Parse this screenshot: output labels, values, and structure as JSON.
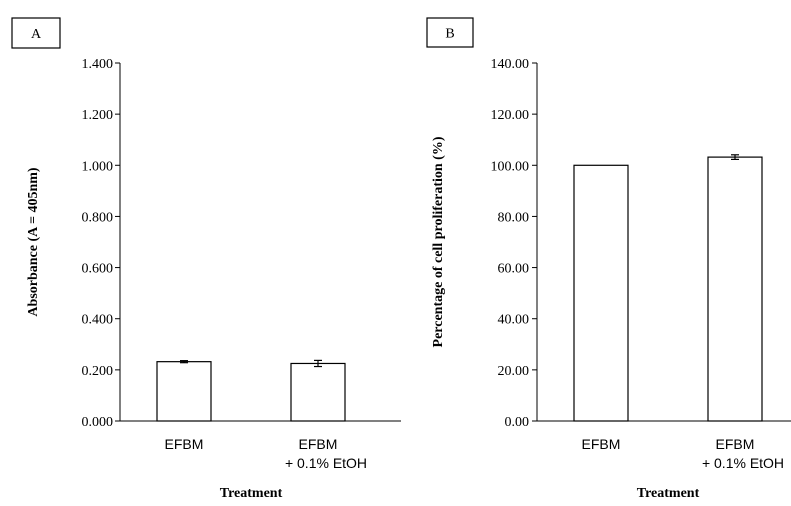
{
  "chart_data": [
    {
      "type": "bar",
      "panel_label": "A",
      "categories": [
        [
          "EFBM"
        ],
        [
          "EFBM",
          "+ 0.1% EtOH"
        ]
      ],
      "values": [
        0.232,
        0.225
      ],
      "errors": [
        0.004,
        0.012
      ],
      "y_ticks": [
        "0.000",
        "0.200",
        "0.400",
        "0.600",
        "0.800",
        "1.000",
        "1.200",
        "1.400"
      ],
      "ylim": [
        0,
        1.4
      ],
      "xlabel": "Treatment",
      "ylabel": "Absorbance (A = 405nm)",
      "grid": false,
      "bar_fill": "#ffffff",
      "bar_stroke": "#000000"
    },
    {
      "type": "bar",
      "panel_label": "B",
      "categories": [
        [
          "EFBM"
        ],
        [
          "EFBM",
          "+ 0.1% EtOH"
        ]
      ],
      "values": [
        100.0,
        103.2
      ],
      "errors": [
        0,
        0.9
      ],
      "y_ticks": [
        "0.00",
        "20.00",
        "40.00",
        "60.00",
        "80.00",
        "100.00",
        "120.00",
        "140.00"
      ],
      "ylim": [
        0,
        140
      ],
      "xlabel": "Treatment",
      "ylabel": "Percentage of cell proliferation (%)",
      "grid": false,
      "bar_fill": "#ffffff",
      "bar_stroke": "#000000"
    }
  ]
}
